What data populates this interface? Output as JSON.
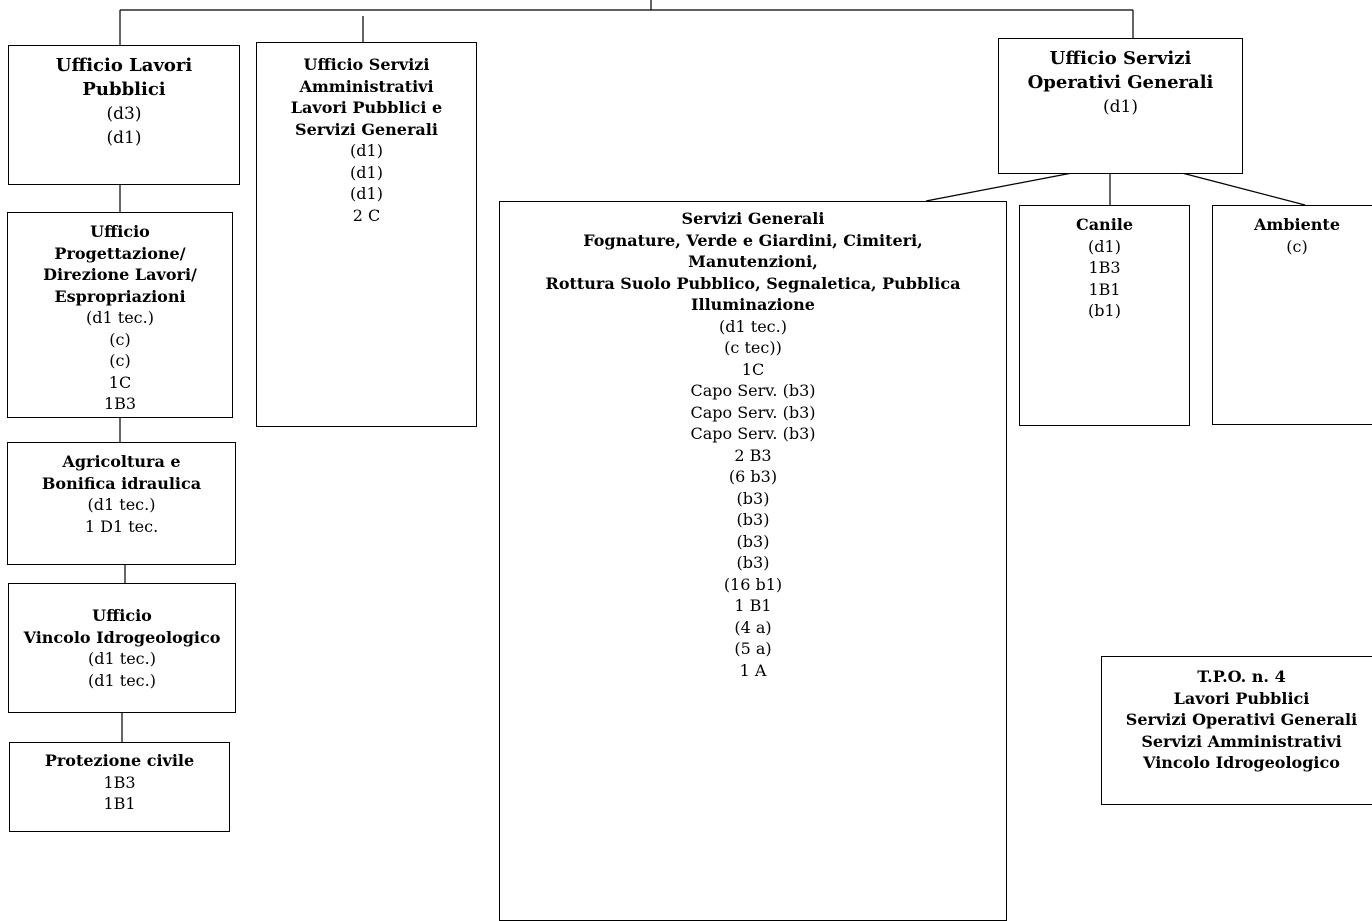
{
  "boxes": {
    "lavori_pubblici": {
      "title": [
        "Ufficio Lavori",
        "Pubblici"
      ],
      "lines": [
        "(d3)",
        "(d1)"
      ]
    },
    "servizi_amministrativi": {
      "title": [
        "Ufficio Servizi",
        "Amministrativi",
        "Lavori Pubblici e",
        "Servizi Generali"
      ],
      "lines": [
        "(d1)",
        "(d1)",
        "(d1)",
        "2 C"
      ]
    },
    "progettazione": {
      "title": [
        "Ufficio",
        "Progettazione/",
        "Direzione Lavori/",
        "Espropriazioni"
      ],
      "lines": [
        "(d1 tec.)",
        "(c)",
        "(c)",
        "1C",
        "1B3"
      ]
    },
    "agricoltura": {
      "title": [
        "Agricoltura e",
        "Bonifica idraulica"
      ],
      "lines": [
        "(d1 tec.)",
        "1 D1 tec."
      ]
    },
    "vincolo": {
      "title": [
        "Ufficio",
        "Vincolo Idrogeologico"
      ],
      "lines": [
        "(d1 tec.)",
        "(d1 tec.)"
      ]
    },
    "protezione_civile": {
      "title": [
        "Protezione civile"
      ],
      "lines": [
        "1B3",
        "1B1"
      ]
    },
    "operativi_generali": {
      "title": [
        "Ufficio Servizi",
        "Operativi Generali"
      ],
      "lines": [
        "(d1)"
      ]
    },
    "servizi_generali": {
      "title": [
        "Servizi Generali",
        "Fognature, Verde e Giardini,  Cimiteri,",
        "Manutenzioni,",
        "Rottura Suolo Pubblico, Segnaletica, Pubblica",
        "Illuminazione"
      ],
      "lines": [
        "(d1 tec.)",
        "(c tec))",
        "1C",
        "Capo Serv. (b3)",
        "Capo Serv. (b3)",
        "Capo Serv. (b3)",
        "2 B3",
        "(6 b3)",
        "(b3)",
        "(b3)",
        "(b3)",
        "(b3)",
        "(16 b1)",
        "1 B1",
        "(4 a)",
        "(5 a)",
        "1 A"
      ]
    },
    "canile": {
      "title": [
        "Canile"
      ],
      "lines": [
        "(d1)",
        "1B3",
        "1B1",
        "(b1)"
      ]
    },
    "ambiente": {
      "title": [
        "Ambiente"
      ],
      "lines": [
        "(c)"
      ]
    },
    "tpo": {
      "title": [
        "T.P.O. n. 4",
        "Lavori Pubblici",
        "Servizi Operativi Generali",
        "Servizi Amministrativi",
        "Vincolo Idrogeologico"
      ],
      "lines": []
    }
  }
}
